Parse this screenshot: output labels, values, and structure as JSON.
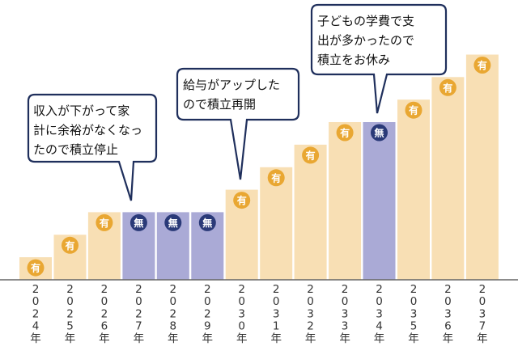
{
  "chart_data": {
    "type": "bar",
    "categories": [
      "2024年",
      "2025年",
      "2026年",
      "2027年",
      "2028年",
      "2029年",
      "2030年",
      "2031年",
      "2032年",
      "2033年",
      "2034年",
      "2035年",
      "2036年",
      "2037年"
    ],
    "values": [
      1,
      2,
      3,
      3,
      3,
      3,
      4,
      5,
      6,
      7,
      7,
      8,
      9,
      10
    ],
    "status": [
      "有",
      "有",
      "有",
      "無",
      "無",
      "無",
      "有",
      "有",
      "有",
      "有",
      "無",
      "有",
      "有",
      "有"
    ],
    "ylim": [
      0,
      10.5
    ],
    "legend": {
      "active": "有",
      "paused": "無"
    },
    "callouts": [
      {
        "target_index": 3,
        "lines": [
          "収入が下がって家",
          "計に余裕がなくなっ",
          "たので積立停止"
        ]
      },
      {
        "target_index": 6,
        "lines": [
          "給与がアップした",
          "ので積立再開"
        ]
      },
      {
        "target_index": 10,
        "lines": [
          "子どもの学費で支",
          "出が多かったので",
          "積立をお休み"
        ]
      }
    ]
  },
  "colors": {
    "active_bar": "#f8dfb4",
    "paused_bar": "#aaaad6",
    "active_badge": "#e9a732",
    "paused_badge": "#2a3a78",
    "callout_border": "#1f2f5c",
    "axis": "#666666"
  }
}
